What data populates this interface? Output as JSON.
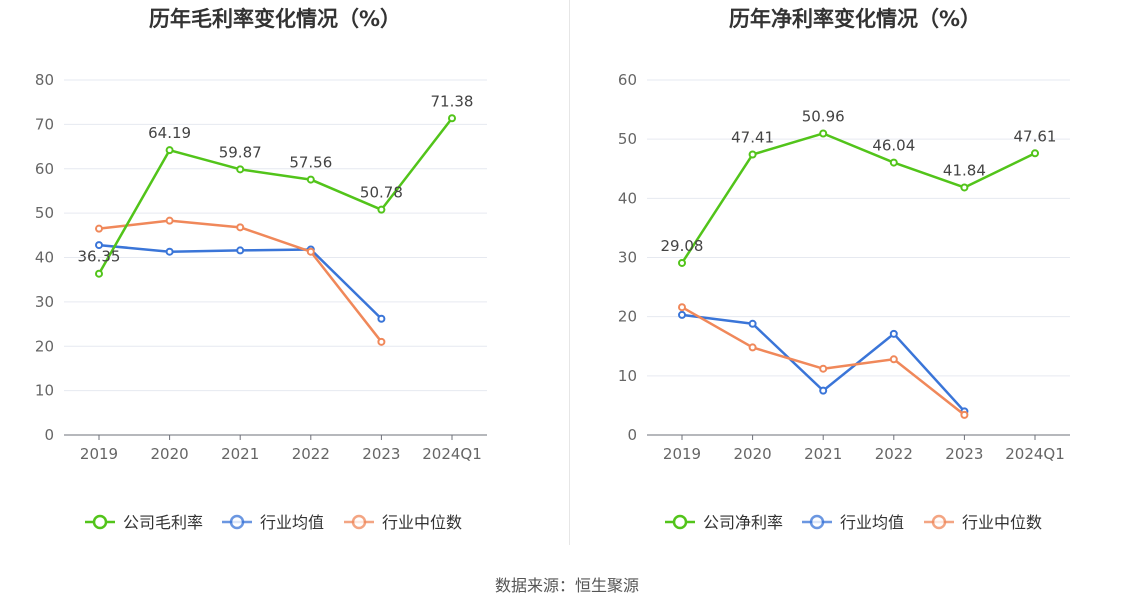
{
  "source_note": "数据来源：恒生聚源",
  "chart_data": [
    {
      "type": "line",
      "title": "历年毛利率变化情况（%）",
      "categories": [
        "2019",
        "2020",
        "2021",
        "2022",
        "2023",
        "2024Q1"
      ],
      "ylim": [
        0,
        80
      ],
      "yticks": [
        0,
        10,
        20,
        30,
        40,
        50,
        60,
        70,
        80
      ],
      "grid": true,
      "legend_position": "bottom",
      "series": [
        {
          "name": "公司毛利率",
          "color": "#52c41a",
          "values": [
            36.35,
            64.19,
            59.87,
            57.56,
            50.78,
            71.38
          ],
          "labels": [
            "36.35",
            "64.19",
            "59.87",
            "57.56",
            "50.78",
            "71.38"
          ]
        },
        {
          "name": "行业均值",
          "color": "#3a75d8",
          "values": [
            42.8,
            41.3,
            41.6,
            41.8,
            26.2,
            null
          ]
        },
        {
          "name": "行业中位数",
          "color": "#f0885a",
          "values": [
            46.5,
            48.3,
            46.8,
            41.3,
            21.0,
            null
          ]
        }
      ]
    },
    {
      "type": "line",
      "title": "历年净利率变化情况（%）",
      "categories": [
        "2019",
        "2020",
        "2021",
        "2022",
        "2023",
        "2024Q1"
      ],
      "ylim": [
        0,
        60
      ],
      "yticks": [
        0,
        10,
        20,
        30,
        40,
        50,
        60
      ],
      "grid": true,
      "legend_position": "bottom",
      "series": [
        {
          "name": "公司净利率",
          "color": "#52c41a",
          "values": [
            29.08,
            47.41,
            50.96,
            46.04,
            41.84,
            47.61
          ],
          "labels": [
            "29.08",
            "47.41",
            "50.96",
            "46.04",
            "41.84",
            "47.61"
          ]
        },
        {
          "name": "行业均值",
          "color": "#3a75d8",
          "values": [
            20.3,
            18.8,
            7.5,
            17.1,
            4.0,
            null
          ]
        },
        {
          "name": "行业中位数",
          "color": "#f0885a",
          "values": [
            21.6,
            14.8,
            11.2,
            12.8,
            3.4,
            null
          ]
        }
      ]
    }
  ]
}
